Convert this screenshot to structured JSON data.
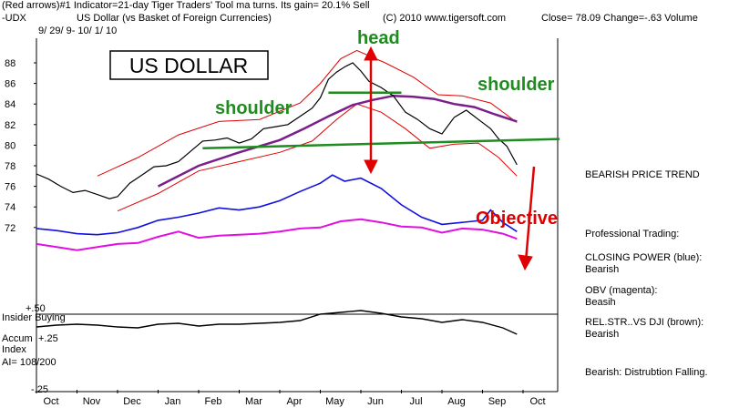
{
  "header": {
    "line1": "(Red arrows)#1 Indicator=21-day Tiger Traders' Tool ma turns.  Its gain= 20.1% Sell",
    "symbol": "-UDX",
    "name": "US Dollar (vs Basket of Foreign Currencies)",
    "copyright": "(C) 2010 www.tigersoft.com",
    "close": "Close=  78.09  Change=-.63 Volume",
    "dates": "9/ 29/ 9-  10/ 1/ 10"
  },
  "title_box": "US DOLLAR",
  "annotations": {
    "head": "head",
    "shoulder_left": "shoulder",
    "shoulder_right": "shoulder",
    "objective": "Objective"
  },
  "right_panel": {
    "trend": "BEARISH PRICE TREND",
    "pro": "Professional Trading:",
    "cp_title": "CLOSING POWER (blue):",
    "cp_val": "Bearish",
    "obv_title": "OBV (magenta):",
    "obv_val": "Beasih",
    "rel_title": "REL.STR..VS DJI (brown):",
    "rel_val": "Bearish",
    "bottom": "Bearish: Distrubtion Falling."
  },
  "lower_panel": {
    "insider": "Insider Buying",
    "plus50": "+.50",
    "accum": "Accum",
    "plus25": "+.25",
    "index": "Index",
    "ai": "AI= 108/200",
    "minus25": "-.25"
  },
  "colors": {
    "price": "#000000",
    "ma": "#7a1f8a",
    "bands": "#e00000",
    "neckline": "#1e8c1e",
    "closing_power": "#1010e0",
    "obv": "#e010e0",
    "rel_str": "#000000",
    "annotation_green": "#1e8c1e",
    "annotation_red": "#e00000"
  },
  "chart_data": {
    "type": "line",
    "title": "US Dollar (vs Basket of Foreign Currencies)",
    "x_months": [
      "Oct",
      "Nov",
      "Dec",
      "Jan",
      "Feb",
      "Mar",
      "Apr",
      "May",
      "Jun",
      "Jul",
      "Aug",
      "Sep",
      "Oct"
    ],
    "y_ticks": [
      72,
      74,
      76,
      78,
      80,
      82,
      84,
      86,
      88
    ],
    "ylim": [
      70.8,
      89.2
    ],
    "series": [
      {
        "name": "",
        "key": "price",
        "points": [
          [
            0,
            77.2
          ],
          [
            0.3,
            76.7
          ],
          [
            0.6,
            76.0
          ],
          [
            0.9,
            75.4
          ],
          [
            1.2,
            75.6
          ],
          [
            1.5,
            75.2
          ],
          [
            1.8,
            74.8
          ],
          [
            2.0,
            75.0
          ],
          [
            2.3,
            76.3
          ],
          [
            2.6,
            77.1
          ],
          [
            2.9,
            77.9
          ],
          [
            3.2,
            78.0
          ],
          [
            3.5,
            78.4
          ],
          [
            3.8,
            79.4
          ],
          [
            4.1,
            80.4
          ],
          [
            4.4,
            80.5
          ],
          [
            4.7,
            80.7
          ],
          [
            5.0,
            80.2
          ],
          [
            5.3,
            80.6
          ],
          [
            5.6,
            81.6
          ],
          [
            5.9,
            81.8
          ],
          [
            6.2,
            82.0
          ],
          [
            6.5,
            82.8
          ],
          [
            6.8,
            83.6
          ],
          [
            7.0,
            84.6
          ],
          [
            7.2,
            86.4
          ],
          [
            7.4,
            87.1
          ],
          [
            7.6,
            87.6
          ],
          [
            7.8,
            88.0
          ],
          [
            8.0,
            87.2
          ],
          [
            8.2,
            86.2
          ],
          [
            8.5,
            85.6
          ],
          [
            8.8,
            84.8
          ],
          [
            9.1,
            83.2
          ],
          [
            9.4,
            82.5
          ],
          [
            9.7,
            81.6
          ],
          [
            10.0,
            81.1
          ],
          [
            10.3,
            82.7
          ],
          [
            10.6,
            83.4
          ],
          [
            10.9,
            82.5
          ],
          [
            11.2,
            81.6
          ],
          [
            11.4,
            80.6
          ],
          [
            11.6,
            79.9
          ],
          [
            11.85,
            78.1
          ]
        ]
      },
      {
        "name": "",
        "key": "ma",
        "points": [
          [
            3.0,
            76.0
          ],
          [
            4.0,
            78.0
          ],
          [
            5.0,
            79.3
          ],
          [
            6.0,
            80.5
          ],
          [
            6.6,
            81.6
          ],
          [
            7.2,
            82.8
          ],
          [
            7.8,
            83.9
          ],
          [
            8.3,
            84.4
          ],
          [
            8.8,
            84.8
          ],
          [
            9.3,
            84.7
          ],
          [
            9.8,
            84.5
          ],
          [
            10.3,
            84.0
          ],
          [
            10.8,
            83.7
          ],
          [
            11.3,
            83.0
          ],
          [
            11.85,
            82.3
          ]
        ]
      },
      {
        "name": "",
        "key": "upper_band",
        "points": [
          [
            1.5,
            77.0
          ],
          [
            2.5,
            78.8
          ],
          [
            3.5,
            81.0
          ],
          [
            4.5,
            82.3
          ],
          [
            5.5,
            82.5
          ],
          [
            6.5,
            84.1
          ],
          [
            7.0,
            86.0
          ],
          [
            7.5,
            88.4
          ],
          [
            7.9,
            89.2
          ],
          [
            8.6,
            88.0
          ],
          [
            9.3,
            86.6
          ],
          [
            9.9,
            84.9
          ],
          [
            10.5,
            84.8
          ],
          [
            11.2,
            84.1
          ],
          [
            11.85,
            82.2
          ]
        ]
      },
      {
        "name": "",
        "key": "lower_band",
        "points": [
          [
            2.0,
            73.6
          ],
          [
            3.0,
            75.3
          ],
          [
            4.0,
            77.5
          ],
          [
            5.0,
            78.4
          ],
          [
            6.0,
            79.3
          ],
          [
            6.8,
            80.4
          ],
          [
            7.4,
            82.5
          ],
          [
            7.9,
            84.0
          ],
          [
            8.5,
            83.2
          ],
          [
            9.1,
            81.6
          ],
          [
            9.7,
            79.7
          ],
          [
            10.3,
            80.1
          ],
          [
            10.9,
            80.2
          ],
          [
            11.4,
            78.8
          ],
          [
            11.85,
            77.0
          ]
        ]
      },
      {
        "name": "",
        "key": "neckline",
        "points": [
          [
            4.1,
            79.7
          ],
          [
            12.9,
            80.6
          ]
        ]
      },
      {
        "name": "",
        "key": "head_bar",
        "points": [
          [
            7.2,
            85.1
          ],
          [
            9.0,
            85.1
          ]
        ]
      },
      {
        "name": "",
        "key": "closing_power",
        "points": [
          [
            0,
            71.9
          ],
          [
            0.5,
            71.7
          ],
          [
            1.0,
            71.4
          ],
          [
            1.5,
            71.3
          ],
          [
            2.0,
            71.5
          ],
          [
            2.5,
            72.0
          ],
          [
            3.0,
            72.7
          ],
          [
            3.5,
            73.0
          ],
          [
            4.0,
            73.4
          ],
          [
            4.5,
            73.9
          ],
          [
            5.0,
            73.7
          ],
          [
            5.5,
            74.0
          ],
          [
            6.0,
            74.6
          ],
          [
            6.5,
            75.5
          ],
          [
            7.0,
            76.3
          ],
          [
            7.3,
            77.1
          ],
          [
            7.6,
            76.5
          ],
          [
            8.0,
            76.8
          ],
          [
            8.5,
            75.8
          ],
          [
            9.0,
            74.2
          ],
          [
            9.5,
            73.0
          ],
          [
            10.0,
            72.3
          ],
          [
            10.5,
            72.5
          ],
          [
            11.0,
            72.7
          ],
          [
            11.2,
            73.7
          ],
          [
            11.5,
            72.5
          ],
          [
            11.85,
            71.6
          ]
        ]
      },
      {
        "name": "",
        "key": "obv",
        "points": [
          [
            0,
            70.4
          ],
          [
            0.5,
            70.1
          ],
          [
            1.0,
            69.8
          ],
          [
            1.5,
            70.1
          ],
          [
            2.0,
            70.4
          ],
          [
            2.5,
            70.5
          ],
          [
            3.0,
            71.1
          ],
          [
            3.5,
            71.6
          ],
          [
            4.0,
            71.0
          ],
          [
            4.5,
            71.2
          ],
          [
            5.0,
            71.3
          ],
          [
            5.5,
            71.4
          ],
          [
            6.0,
            71.6
          ],
          [
            6.5,
            71.9
          ],
          [
            7.0,
            72.0
          ],
          [
            7.5,
            72.6
          ],
          [
            8.0,
            72.8
          ],
          [
            8.5,
            72.5
          ],
          [
            9.0,
            72.1
          ],
          [
            9.5,
            72.0
          ],
          [
            10.0,
            71.5
          ],
          [
            10.5,
            71.9
          ],
          [
            11.0,
            71.8
          ],
          [
            11.5,
            71.4
          ],
          [
            11.85,
            70.9
          ]
        ]
      },
      {
        "name": "",
        "key": "rel_str",
        "points": [
          [
            0,
            359
          ],
          [
            0.5,
            357
          ],
          [
            1.0,
            356
          ],
          [
            1.5,
            357
          ],
          [
            2.0,
            359
          ],
          [
            2.5,
            360
          ],
          [
            3.0,
            356
          ],
          [
            3.5,
            355
          ],
          [
            4.0,
            358
          ],
          [
            4.5,
            356
          ],
          [
            5.0,
            356
          ],
          [
            5.5,
            355
          ],
          [
            6.0,
            354
          ],
          [
            6.5,
            352
          ],
          [
            7.0,
            345
          ],
          [
            7.5,
            343
          ],
          [
            8.0,
            341
          ],
          [
            8.5,
            344
          ],
          [
            9.0,
            348
          ],
          [
            9.5,
            350
          ],
          [
            10.0,
            354
          ],
          [
            10.5,
            351
          ],
          [
            11.0,
            354
          ],
          [
            11.5,
            360
          ],
          [
            11.85,
            367
          ]
        ]
      }
    ]
  }
}
